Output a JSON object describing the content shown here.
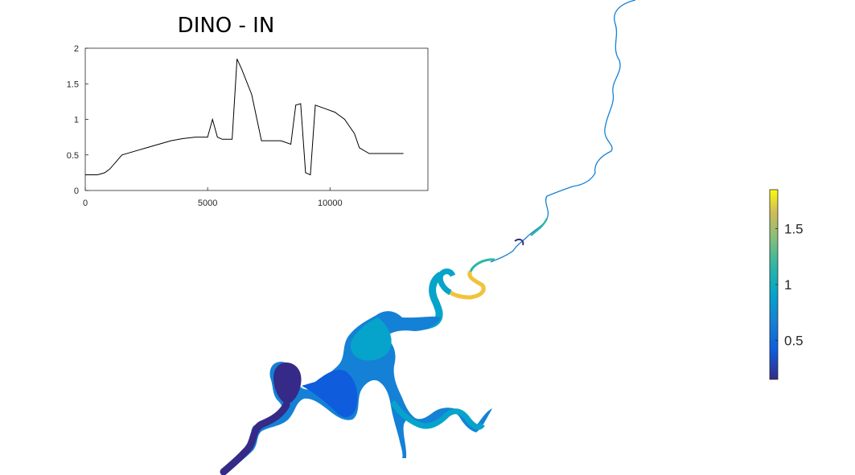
{
  "chart_data": [
    {
      "type": "line",
      "title": "DINO - IN",
      "xlabel": "",
      "ylabel": "",
      "xlim": [
        0,
        14000
      ],
      "ylim": [
        0,
        2
      ],
      "xticks": [
        "0",
        "5000",
        "10000"
      ],
      "yticks": [
        "0",
        "0.5",
        "1",
        "1.5",
        "2"
      ],
      "grid": false,
      "series": [
        {
          "color": "#000000",
          "x": [
            0,
            500,
            800,
            1000,
            1500,
            2000,
            2500,
            3000,
            3500,
            4000,
            4500,
            5000,
            5200,
            5400,
            5600,
            6000,
            6200,
            6400,
            6800,
            7200,
            7600,
            8000,
            8400,
            8600,
            8800,
            9000,
            9200,
            9400,
            9800,
            10200,
            10600,
            11000,
            11200,
            11600,
            12000,
            13000
          ],
          "y": [
            0.22,
            0.22,
            0.25,
            0.3,
            0.5,
            0.55,
            0.6,
            0.65,
            0.7,
            0.73,
            0.75,
            0.75,
            1.0,
            0.75,
            0.72,
            0.72,
            1.85,
            1.7,
            1.35,
            0.7,
            0.7,
            0.7,
            0.65,
            1.2,
            1.22,
            0.25,
            0.22,
            1.2,
            1.15,
            1.1,
            1.0,
            0.8,
            0.6,
            0.52,
            0.52,
            0.52
          ]
        }
      ]
    },
    {
      "type": "heatmap",
      "colormap": "parula",
      "colorbar_ticks": [
        "0.5",
        "1",
        "1.5"
      ],
      "clim": [
        0.15,
        1.85
      ],
      "colors": {
        "low": "#352A87",
        "mid": "#1BB3C8",
        "high": "#F9FB0E"
      }
    }
  ]
}
